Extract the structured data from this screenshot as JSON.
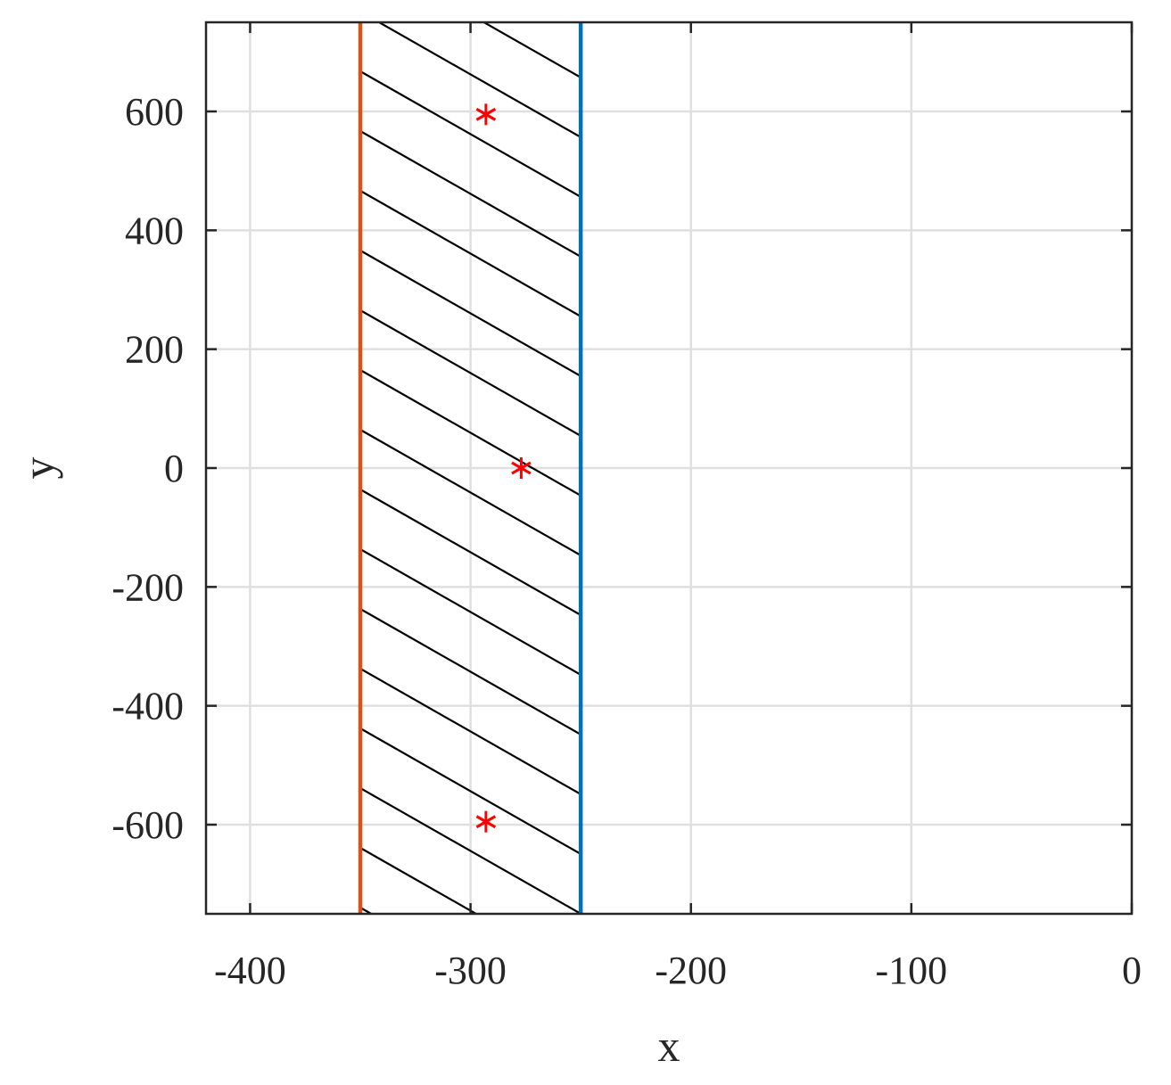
{
  "chart_data": {
    "type": "line",
    "xlabel": "x",
    "ylabel": "y",
    "xlim": [
      -420,
      0
    ],
    "ylim": [
      -750,
      750
    ],
    "xticks": [
      -400,
      -300,
      -200,
      -100,
      0
    ],
    "yticks": [
      -600,
      -400,
      -200,
      0,
      200,
      400,
      600
    ],
    "xtick_labels": [
      "-400",
      "-300",
      "-200",
      "-100",
      "0"
    ],
    "ytick_labels": [
      "-600",
      "-400",
      "-200",
      "0",
      "200",
      "400",
      "600"
    ],
    "grid": true,
    "vertical_lines": [
      {
        "x": -350,
        "color": "#d95319"
      },
      {
        "x": -250,
        "color": "#0072bd"
      }
    ],
    "hatched_region": {
      "x": [
        -350,
        -250
      ],
      "hatch": "diagonal",
      "color": "#000000"
    },
    "points": {
      "marker": "asterisk",
      "color": "#ff0000",
      "x": [
        -293,
        -277,
        -293
      ],
      "y": [
        595,
        0,
        -595
      ]
    }
  }
}
